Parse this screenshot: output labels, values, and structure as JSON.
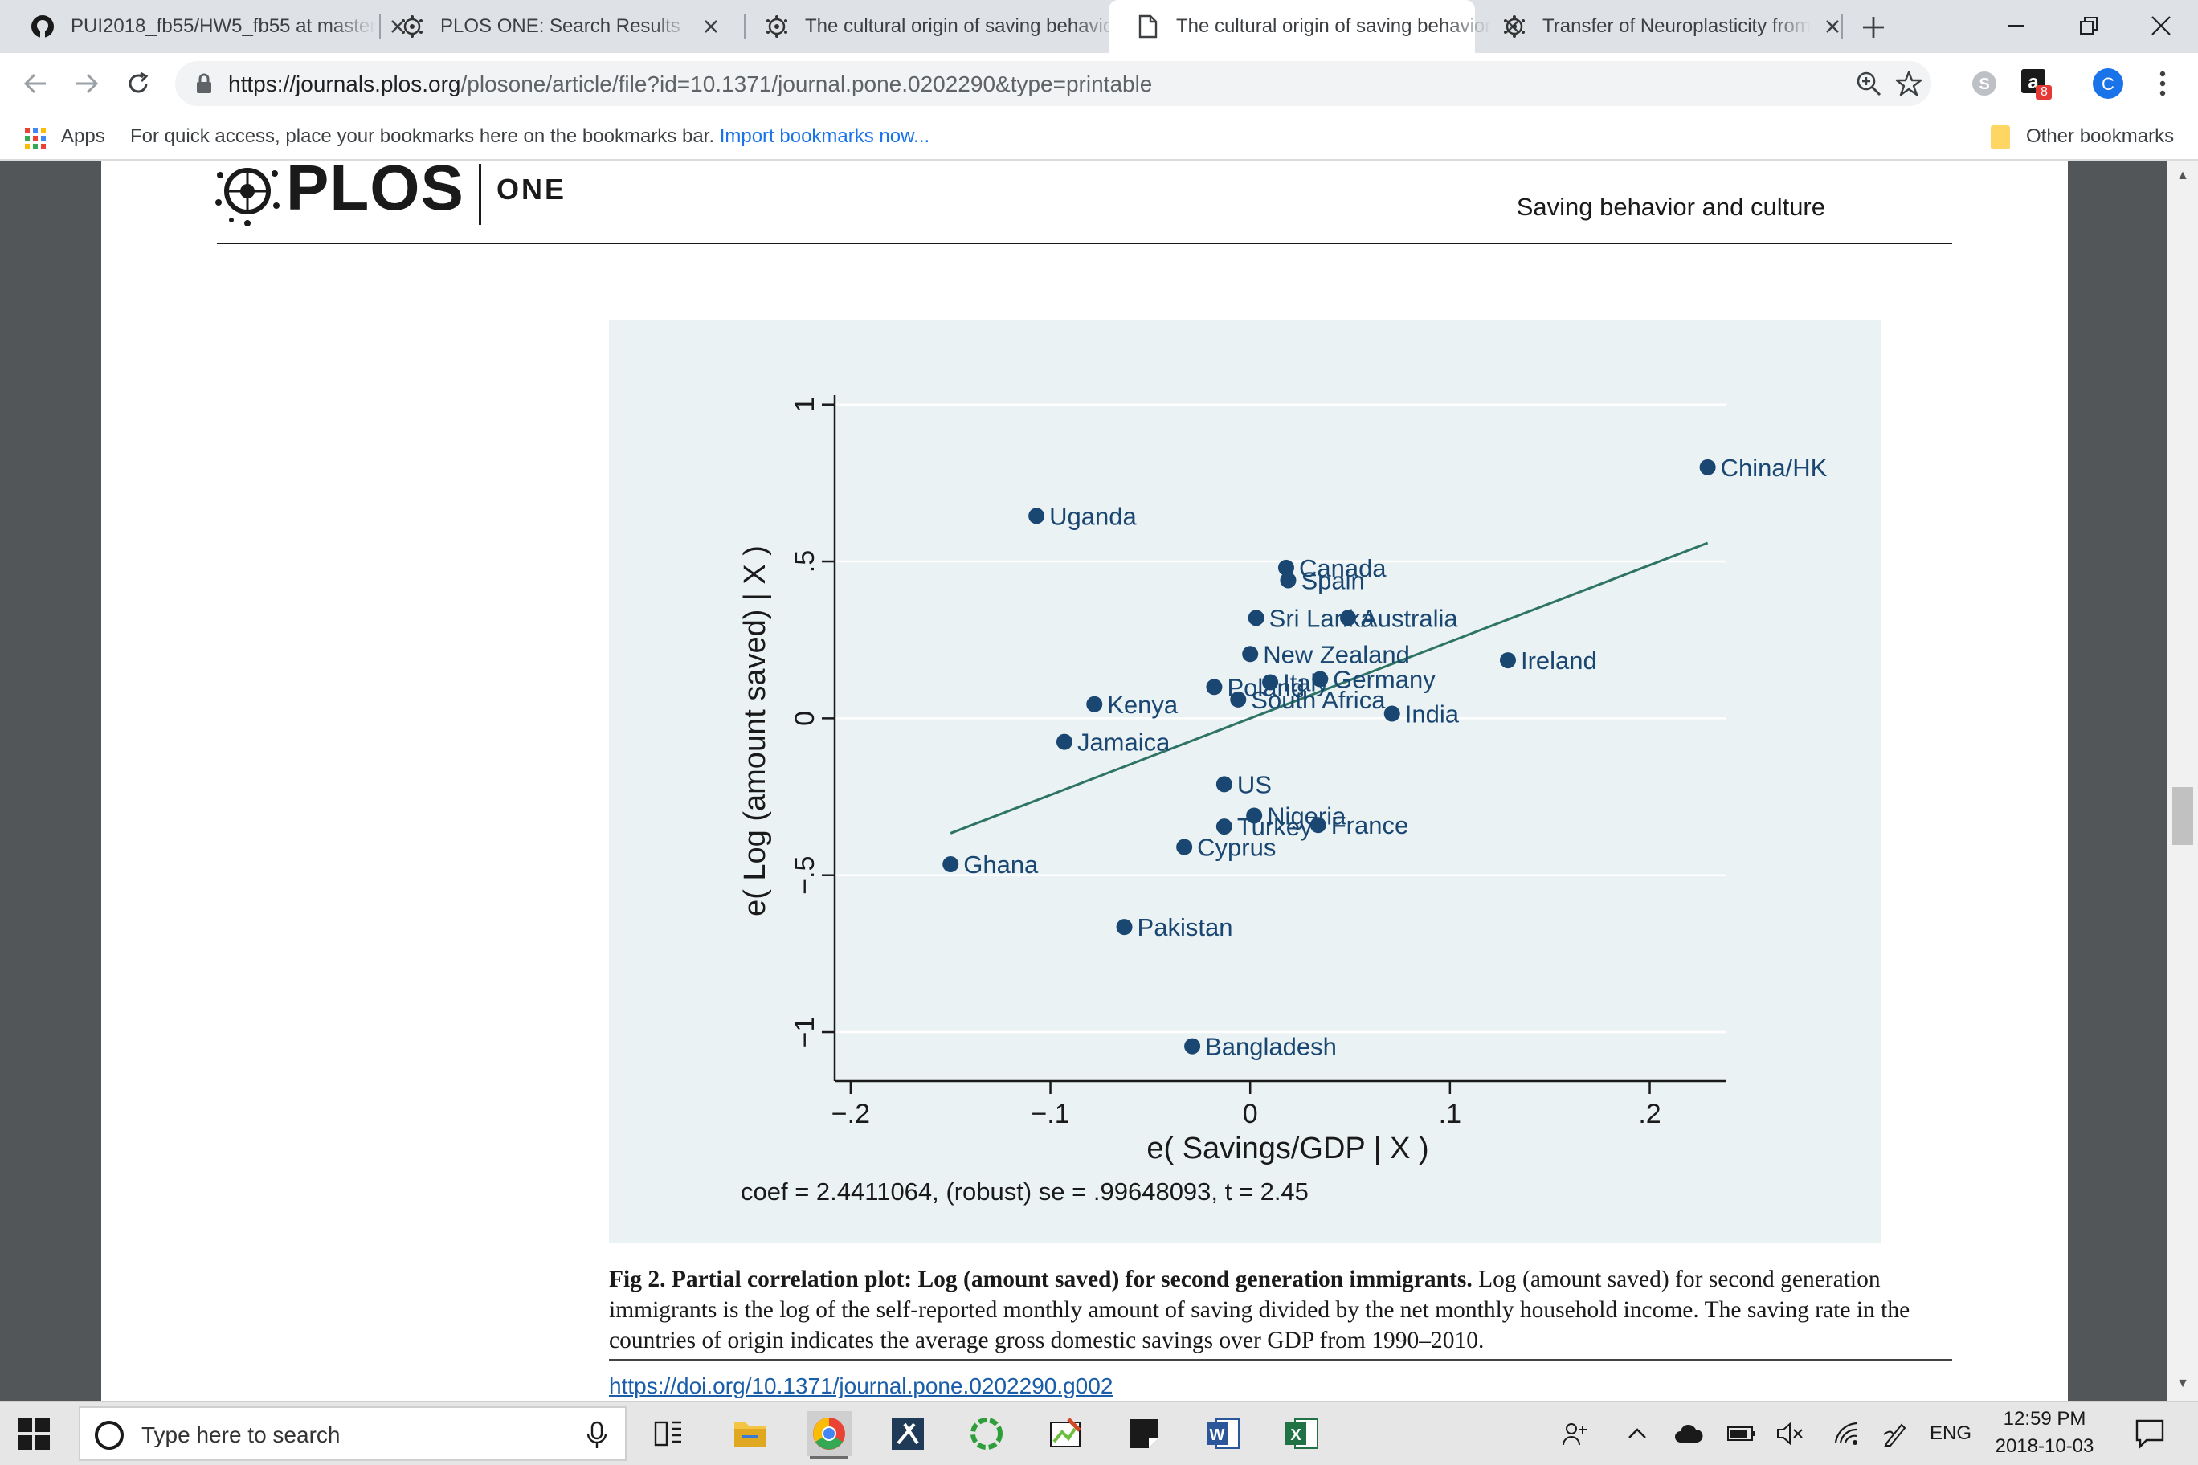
{
  "tabs": [
    {
      "title": "PUI2018_fb55/HW5_fb55 at master",
      "icon": "github-icon",
      "active": false
    },
    {
      "title": "PLOS ONE: Search Results",
      "icon": "plos-icon",
      "active": false
    },
    {
      "title": "The cultural origin of saving behavior",
      "icon": "plos-icon",
      "active": false
    },
    {
      "title": "The cultural origin of saving behavior",
      "icon": "document-icon",
      "active": true
    },
    {
      "title": "Transfer of Neuroplasticity from",
      "icon": "plos-icon",
      "active": false
    }
  ],
  "address_bar": {
    "url_host": "https://journals.plos.org",
    "url_path": "/plosone/article/file?id=10.1371/journal.pone.0202290&type=printable"
  },
  "extensions": {
    "amazon_badge": "8",
    "profile_initial": "C"
  },
  "bookmarks": {
    "apps_label": "Apps",
    "hint": "For quick access, place your bookmarks here on the bookmarks bar.",
    "import_link": "Import bookmarks now...",
    "other": "Other bookmarks"
  },
  "paper": {
    "logo_text": "PLOS",
    "logo_sub": "ONE",
    "running_title": "Saving behavior and culture",
    "caption_bold": "Fig 2. Partial correlation plot: Log (amount saved) for second generation immigrants.",
    "caption_text": " Log (amount saved) for second generation immigrants is the log of the self-reported monthly amount of saving divided by the net monthly household income. The saving rate in the countries of origin indicates the average gross domestic savings over GDP from 1990–2010.",
    "doi": "https://doi.org/10.1371/journal.pone.0202290.g002"
  },
  "chart_data": {
    "type": "scatter",
    "xlabel": "e( Savings/GDP | X )",
    "ylabel": "e( Log (amount saved) | X )",
    "xlim": [
      -0.208,
      0.238
    ],
    "ylim": [
      -1.11,
      1.03
    ],
    "x_ticks": [
      -0.2,
      -0.1,
      0,
      0.1,
      0.2
    ],
    "x_tick_labels": [
      "−.2",
      "−.1",
      "0",
      ".1",
      ".2"
    ],
    "y_ticks": [
      -1,
      -0.5,
      0,
      0.5,
      1
    ],
    "y_tick_labels": [
      "−1",
      "−.5",
      "0",
      ".5",
      "1"
    ],
    "grid": true,
    "points": [
      {
        "label": "China/HK",
        "x": 0.229,
        "y": 0.8
      },
      {
        "label": "Uganda",
        "x": -0.107,
        "y": 0.645
      },
      {
        "label": "Canada",
        "x": 0.018,
        "y": 0.48
      },
      {
        "label": "Spain",
        "x": 0.019,
        "y": 0.44
      },
      {
        "label": "Sri Lanka",
        "x": 0.003,
        "y": 0.32
      },
      {
        "label": "Australia",
        "x": 0.049,
        "y": 0.32
      },
      {
        "label": "New Zealand",
        "x": 0.0,
        "y": 0.205
      },
      {
        "label": "Ireland",
        "x": 0.129,
        "y": 0.185
      },
      {
        "label": "Poland",
        "x": -0.018,
        "y": 0.1
      },
      {
        "label": "Italy",
        "x": 0.01,
        "y": 0.115
      },
      {
        "label": "Germany",
        "x": 0.035,
        "y": 0.125
      },
      {
        "label": "South Africa",
        "x": -0.006,
        "y": 0.06
      },
      {
        "label": "Kenya",
        "x": -0.078,
        "y": 0.045
      },
      {
        "label": "India",
        "x": 0.071,
        "y": 0.015
      },
      {
        "label": "Jamaica",
        "x": -0.093,
        "y": -0.075
      },
      {
        "label": "US",
        "x": -0.013,
        "y": -0.21
      },
      {
        "label": "Nigeria",
        "x": 0.002,
        "y": -0.31
      },
      {
        "label": "Turkey",
        "x": -0.013,
        "y": -0.345
      },
      {
        "label": "France",
        "x": 0.034,
        "y": -0.34
      },
      {
        "label": "Cyprus",
        "x": -0.033,
        "y": -0.41
      },
      {
        "label": "Ghana",
        "x": -0.15,
        "y": -0.465
      },
      {
        "label": "Pakistan",
        "x": -0.063,
        "y": -0.665
      },
      {
        "label": "Bangladesh",
        "x": -0.029,
        "y": -1.045
      }
    ],
    "fit_line": {
      "coef": 2.4411064,
      "intercept": 0.0,
      "x_range": [
        -0.15,
        0.229
      ]
    },
    "annotation": "coef = 2.4411064, (robust) se = .99648093, t = 2.45",
    "colors": {
      "marker": "#1a4672",
      "fit": "#2e7466",
      "grid": "#ffffff",
      "background": "#eaf2f3"
    }
  },
  "taskbar": {
    "search_placeholder": "Type here to search",
    "lang": "ENG",
    "time": "12:59 PM",
    "date": "2018-10-03"
  }
}
